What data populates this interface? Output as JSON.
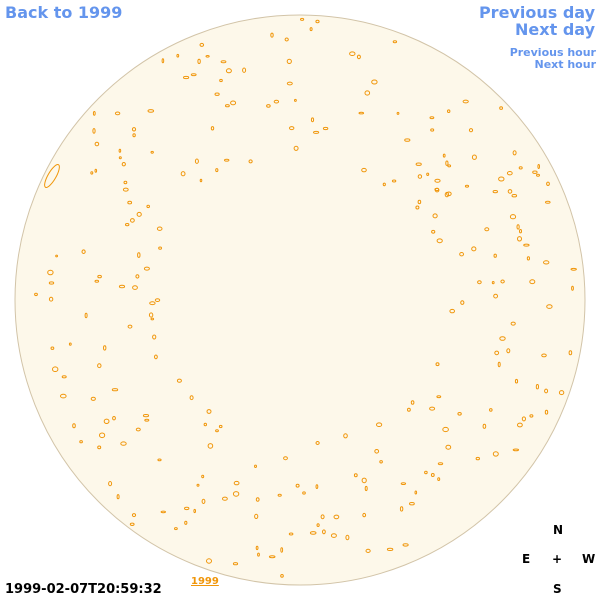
{
  "nav": {
    "back": "Back to 1999",
    "previous_day": "Previous day",
    "next_day": "Next day",
    "previous_hour": "Previous hour",
    "next_hour": "Next hour"
  },
  "compass": {
    "north": "N",
    "east": "E",
    "center": "+",
    "west": "W",
    "south": "S"
  },
  "footer": {
    "timestamp": "1999-02-07T20:59:32",
    "year_link": "1999"
  }
}
